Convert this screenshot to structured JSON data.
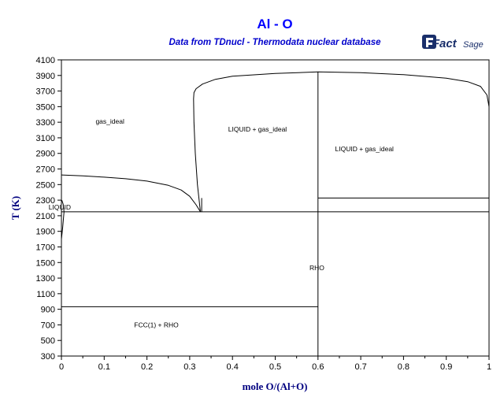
{
  "chart_data": {
    "type": "line",
    "title": "Al - O",
    "subtitle": "Data from TDnucl - Thermodata nuclear database",
    "xlabel": "mole O/(Al+O)",
    "ylabel": "T (K)",
    "xlim": [
      0,
      1
    ],
    "ylim": [
      300,
      4100
    ],
    "x_ticks": [
      "0",
      "0.1",
      "0.2",
      "0.3",
      "0.4",
      "0.5",
      "0.6",
      "0.7",
      "0.8",
      "0.9",
      "1"
    ],
    "y_ticks": [
      "300",
      "500",
      "700",
      "900",
      "1100",
      "1300",
      "1500",
      "1700",
      "1900",
      "2100",
      "2300",
      "2500",
      "2700",
      "2900",
      "3100",
      "3300",
      "3500",
      "3700",
      "3900",
      "4100"
    ],
    "grid": false,
    "series": [
      {
        "x": [
          0,
          0.05,
          0.1,
          0.15,
          0.2,
          0.25,
          0.28,
          0.3,
          0.315,
          0.325
        ],
        "y": [
          2623,
          2612,
          2595,
          2575,
          2545,
          2490,
          2430,
          2350,
          2240,
          2150
        ]
      },
      {
        "x": [
          0.325,
          0.318,
          0.313,
          0.31,
          0.309,
          0.31,
          0.315,
          0.33,
          0.36,
          0.4,
          0.5,
          0.6,
          0.7,
          0.8,
          0.9,
          0.95,
          0.98,
          0.995,
          1.0
        ],
        "y": [
          2150,
          2500,
          2900,
          3300,
          3600,
          3680,
          3730,
          3790,
          3850,
          3890,
          3925,
          3945,
          3935,
          3910,
          3865,
          3820,
          3760,
          3650,
          3500
        ]
      },
      {
        "x": [
          0,
          1
        ],
        "y": [
          2150,
          2150
        ]
      },
      {
        "x": [
          0.6,
          1.0
        ],
        "y": [
          2327,
          2327
        ]
      },
      {
        "x": [
          0,
          0.6
        ],
        "y": [
          933,
          933
        ]
      },
      {
        "x": [
          0.6,
          0.6
        ],
        "y": [
          300,
          3945
        ]
      },
      {
        "x": [
          0.328,
          0.328
        ],
        "y": [
          2150,
          2327
        ]
      },
      {
        "x": [
          0,
          0.003,
          0.006,
          0.004,
          0.001
        ],
        "y": [
          1800,
          1950,
          2150,
          2250,
          2300
        ]
      }
    ],
    "annotations": [
      {
        "text": "gas_ideal",
        "x": 0.08,
        "y": 3280
      },
      {
        "text": "LIQUID + gas_ideal",
        "x": 0.39,
        "y": 3180
      },
      {
        "text": "LIQUID + gas_ideal",
        "x": 0.64,
        "y": 2930
      },
      {
        "text": "LIQUID",
        "x": -0.03,
        "y": 2180
      },
      {
        "text": "RHO",
        "x": 0.58,
        "y": 1400
      },
      {
        "text": "FCC(1) + RHO",
        "x": 0.17,
        "y": 670
      }
    ]
  },
  "logo": {
    "text": "FactSage"
  }
}
